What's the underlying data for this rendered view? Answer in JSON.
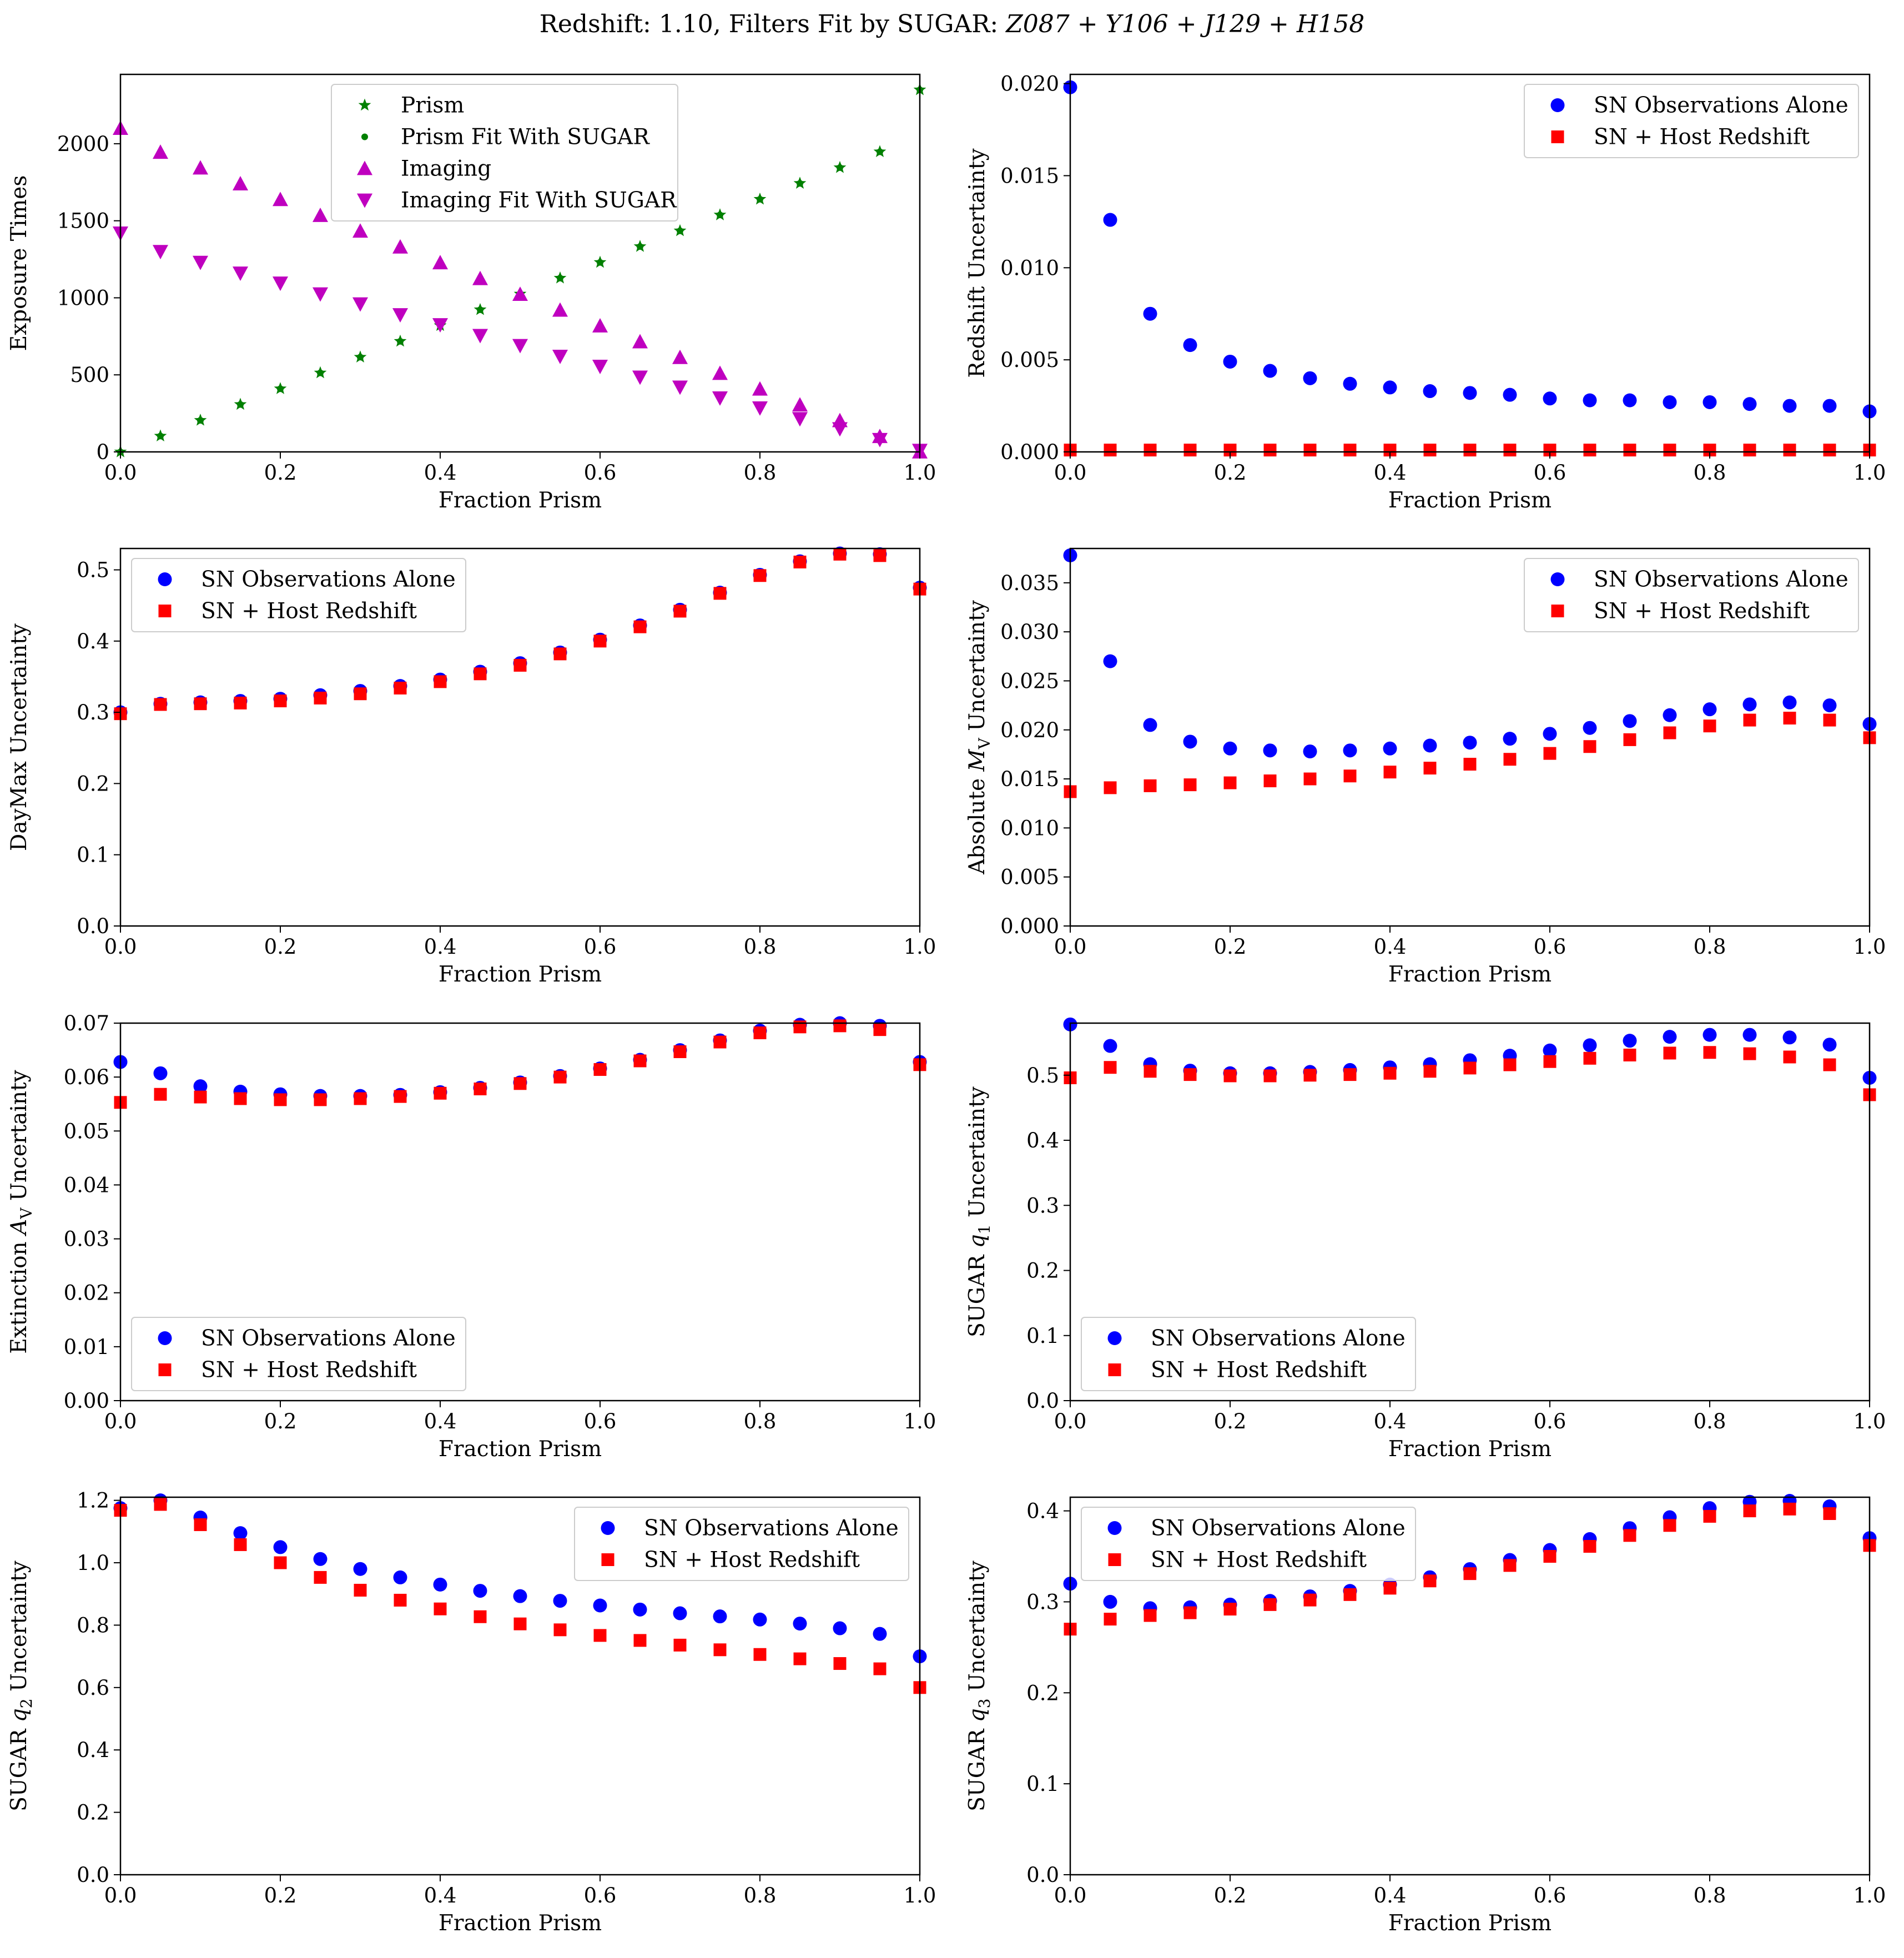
{
  "figure_title": {
    "prefix": "Redshift: 1.10, Filters Fit by SUGAR: ",
    "filters": [
      "Z087",
      "Y106",
      "J129",
      "H158"
    ],
    "joiner": " + "
  },
  "colors": {
    "green": "#008000",
    "magenta": "#bf00bf",
    "blue": "#0000ff",
    "red": "#ff0000"
  },
  "chart_data": [
    {
      "type": "scatter",
      "title": "",
      "xlabel": "Fraction Prism",
      "ylabel": "Exposure Times",
      "xlim": [
        0,
        1
      ],
      "ylim": [
        0,
        2450
      ],
      "xticks": [
        "0.0",
        "0.2",
        "0.4",
        "0.6",
        "0.8",
        "1.0"
      ],
      "yticks": [
        0,
        500,
        1000,
        1500,
        2000
      ],
      "ytick_labels": [
        "0",
        "500",
        "1000",
        "1500",
        "2000"
      ],
      "legend_loc": "top-center",
      "x": [
        0.0,
        0.05,
        0.1,
        0.15,
        0.2,
        0.25,
        0.3,
        0.35,
        0.4,
        0.45,
        0.5,
        0.55,
        0.6,
        0.65,
        0.7,
        0.75,
        0.8,
        0.85,
        0.9,
        0.95,
        1.0
      ],
      "series": [
        {
          "name": "Prism",
          "marker": "star",
          "color": "green",
          "values": [
            0,
            103,
            205,
            308,
            410,
            513,
            615,
            718,
            820,
            923,
            1025,
            1128,
            1230,
            1333,
            1435,
            1538,
            1640,
            1743,
            1845,
            1948,
            2350
          ]
        },
        {
          "name": "Prism Fit With SUGAR",
          "marker": "dot",
          "color": "green",
          "values": [
            0,
            103,
            205,
            308,
            410,
            513,
            615,
            718,
            820,
            923,
            1025,
            1128,
            1230,
            1333,
            1435,
            1538,
            1640,
            1743,
            1845,
            1948,
            2350
          ]
        },
        {
          "name": "Imaging",
          "marker": "triangle-up",
          "color": "magenta",
          "values": [
            2100,
            1945,
            1843,
            1740,
            1638,
            1535,
            1433,
            1330,
            1228,
            1125,
            1023,
            920,
            818,
            715,
            613,
            510,
            408,
            305,
            203,
            100,
            0
          ]
        },
        {
          "name": "Imaging Fit With SUGAR",
          "marker": "triangle-down",
          "color": "magenta",
          "values": [
            1420,
            1300,
            1230,
            1160,
            1095,
            1025,
            960,
            890,
            825,
            755,
            690,
            620,
            555,
            485,
            420,
            350,
            285,
            215,
            150,
            80,
            10
          ]
        }
      ]
    },
    {
      "type": "scatter",
      "title": "",
      "xlabel": "Fraction Prism",
      "ylabel": "Redshift Uncertainty",
      "xlim": [
        0,
        1
      ],
      "ylim": [
        0,
        0.0205
      ],
      "xticks": [
        "0.0",
        "0.2",
        "0.4",
        "0.6",
        "0.8",
        "1.0"
      ],
      "yticks": [
        0,
        0.005,
        0.01,
        0.015,
        0.02
      ],
      "ytick_labels": [
        "0.000",
        "0.005",
        "0.010",
        "0.015",
        "0.020"
      ],
      "legend_loc": "top-right",
      "x": [
        0.0,
        0.05,
        0.1,
        0.15,
        0.2,
        0.25,
        0.3,
        0.35,
        0.4,
        0.45,
        0.5,
        0.55,
        0.6,
        0.65,
        0.7,
        0.75,
        0.8,
        0.85,
        0.9,
        0.95,
        1.0
      ],
      "series": [
        {
          "name": "SN Observations Alone",
          "marker": "circle",
          "color": "blue",
          "values": [
            0.0198,
            0.0126,
            0.0075,
            0.0058,
            0.0049,
            0.0044,
            0.004,
            0.0037,
            0.0035,
            0.0033,
            0.0032,
            0.0031,
            0.0029,
            0.0028,
            0.0028,
            0.0027,
            0.0027,
            0.0026,
            0.0025,
            0.0025,
            0.0022
          ]
        },
        {
          "name": "SN + Host Redshift",
          "marker": "square",
          "color": "red",
          "values": [
            0.0001,
            0.0001,
            0.0001,
            0.0001,
            0.0001,
            0.0001,
            0.0001,
            0.0001,
            0.0001,
            0.0001,
            0.0001,
            0.0001,
            0.0001,
            0.0001,
            0.0001,
            0.0001,
            0.0001,
            0.0001,
            0.0001,
            0.0001,
            0.0001
          ]
        }
      ]
    },
    {
      "type": "scatter",
      "title": "",
      "xlabel": "Fraction Prism",
      "ylabel": "DayMax Uncertainty",
      "xlim": [
        0,
        1
      ],
      "ylim": [
        0,
        0.53
      ],
      "xticks": [
        "0.0",
        "0.2",
        "0.4",
        "0.6",
        "0.8",
        "1.0"
      ],
      "yticks": [
        0,
        0.1,
        0.2,
        0.3,
        0.4,
        0.5
      ],
      "ytick_labels": [
        "0.0",
        "0.1",
        "0.2",
        "0.3",
        "0.4",
        "0.5"
      ],
      "legend_loc": "top-left",
      "x": [
        0.0,
        0.05,
        0.1,
        0.15,
        0.2,
        0.25,
        0.3,
        0.35,
        0.4,
        0.45,
        0.5,
        0.55,
        0.6,
        0.65,
        0.7,
        0.75,
        0.8,
        0.85,
        0.9,
        0.95,
        1.0
      ],
      "series": [
        {
          "name": "SN Observations Alone",
          "marker": "circle",
          "color": "blue",
          "values": [
            0.3,
            0.312,
            0.314,
            0.316,
            0.319,
            0.324,
            0.33,
            0.337,
            0.346,
            0.357,
            0.369,
            0.384,
            0.402,
            0.422,
            0.444,
            0.468,
            0.493,
            0.512,
            0.523,
            0.522,
            0.475
          ]
        },
        {
          "name": "SN + Host Redshift",
          "marker": "square",
          "color": "red",
          "values": [
            0.298,
            0.311,
            0.312,
            0.313,
            0.316,
            0.32,
            0.326,
            0.334,
            0.343,
            0.354,
            0.366,
            0.382,
            0.4,
            0.42,
            0.442,
            0.467,
            0.492,
            0.511,
            0.522,
            0.52,
            0.473
          ]
        }
      ]
    },
    {
      "type": "scatter",
      "title": "",
      "xlabel": "Fraction Prism",
      "ylabel": "Absolute M_V Uncertainty",
      "ylabel_parts": [
        "Absolute ",
        "M",
        "V",
        " Uncertainty"
      ],
      "xlim": [
        0,
        1
      ],
      "ylim": [
        0,
        0.0385
      ],
      "xticks": [
        "0.0",
        "0.2",
        "0.4",
        "0.6",
        "0.8",
        "1.0"
      ],
      "yticks": [
        0,
        0.005,
        0.01,
        0.015,
        0.02,
        0.025,
        0.03,
        0.035
      ],
      "ytick_labels": [
        "0.000",
        "0.005",
        "0.010",
        "0.015",
        "0.020",
        "0.025",
        "0.030",
        "0.035"
      ],
      "legend_loc": "top-right",
      "x": [
        0.0,
        0.05,
        0.1,
        0.15,
        0.2,
        0.25,
        0.3,
        0.35,
        0.4,
        0.45,
        0.5,
        0.55,
        0.6,
        0.65,
        0.7,
        0.75,
        0.8,
        0.85,
        0.9,
        0.95,
        1.0
      ],
      "series": [
        {
          "name": "SN Observations Alone",
          "marker": "circle",
          "color": "blue",
          "values": [
            0.0378,
            0.027,
            0.0205,
            0.0188,
            0.0181,
            0.0179,
            0.0178,
            0.0179,
            0.0181,
            0.0184,
            0.0187,
            0.0191,
            0.0196,
            0.0202,
            0.0209,
            0.0215,
            0.0221,
            0.0226,
            0.0228,
            0.0225,
            0.0206
          ]
        },
        {
          "name": "SN + Host Redshift",
          "marker": "square",
          "color": "red",
          "values": [
            0.0137,
            0.0141,
            0.0143,
            0.0144,
            0.0146,
            0.0148,
            0.015,
            0.0153,
            0.0157,
            0.0161,
            0.0165,
            0.017,
            0.0176,
            0.0183,
            0.019,
            0.0197,
            0.0204,
            0.021,
            0.0212,
            0.021,
            0.0192
          ]
        }
      ]
    },
    {
      "type": "scatter",
      "title": "",
      "xlabel": "Fraction Prism",
      "ylabel": "Extinction A_V Uncertainty",
      "ylabel_parts": [
        "Extinction ",
        "A",
        "V",
        " Uncertainty"
      ],
      "xlim": [
        0,
        1
      ],
      "ylim": [
        0,
        0.07
      ],
      "xticks": [
        "0.0",
        "0.2",
        "0.4",
        "0.6",
        "0.8",
        "1.0"
      ],
      "yticks": [
        0,
        0.01,
        0.02,
        0.03,
        0.04,
        0.05,
        0.06,
        0.07
      ],
      "ytick_labels": [
        "0.00",
        "0.01",
        "0.02",
        "0.03",
        "0.04",
        "0.05",
        "0.06",
        "0.07"
      ],
      "legend_loc": "bottom-left",
      "x": [
        0.0,
        0.05,
        0.1,
        0.15,
        0.2,
        0.25,
        0.3,
        0.35,
        0.4,
        0.45,
        0.5,
        0.55,
        0.6,
        0.65,
        0.7,
        0.75,
        0.8,
        0.85,
        0.9,
        0.95,
        1.0
      ],
      "series": [
        {
          "name": "SN Observations Alone",
          "marker": "circle",
          "color": "blue",
          "values": [
            0.0628,
            0.0607,
            0.0583,
            0.0573,
            0.0568,
            0.0565,
            0.0565,
            0.0567,
            0.0572,
            0.058,
            0.059,
            0.0602,
            0.0616,
            0.0632,
            0.065,
            0.0668,
            0.0686,
            0.0697,
            0.07,
            0.0695,
            0.0628
          ]
        },
        {
          "name": "SN + Host Redshift",
          "marker": "square",
          "color": "red",
          "values": [
            0.0553,
            0.0568,
            0.0563,
            0.056,
            0.0558,
            0.0558,
            0.056,
            0.0564,
            0.057,
            0.0578,
            0.0588,
            0.06,
            0.0614,
            0.063,
            0.0647,
            0.0665,
            0.0682,
            0.0693,
            0.0695,
            0.0688,
            0.0623
          ]
        }
      ]
    },
    {
      "type": "scatter",
      "title": "",
      "xlabel": "Fraction Prism",
      "ylabel": "SUGAR q_1 Uncertainty",
      "ylabel_parts": [
        "SUGAR ",
        "q",
        "1",
        " Uncertainty"
      ],
      "xlim": [
        0,
        1
      ],
      "ylim": [
        0,
        0.58
      ],
      "xticks": [
        "0.0",
        "0.2",
        "0.4",
        "0.6",
        "0.8",
        "1.0"
      ],
      "yticks": [
        0,
        0.1,
        0.2,
        0.3,
        0.4,
        0.5
      ],
      "ytick_labels": [
        "0.0",
        "0.1",
        "0.2",
        "0.3",
        "0.4",
        "0.5"
      ],
      "legend_loc": "bottom-left",
      "x": [
        0.0,
        0.05,
        0.1,
        0.15,
        0.2,
        0.25,
        0.3,
        0.35,
        0.4,
        0.45,
        0.5,
        0.55,
        0.6,
        0.65,
        0.7,
        0.75,
        0.8,
        0.85,
        0.9,
        0.95,
        1.0
      ],
      "series": [
        {
          "name": "SN Observations Alone",
          "marker": "circle",
          "color": "blue",
          "values": [
            0.578,
            0.545,
            0.517,
            0.507,
            0.503,
            0.503,
            0.505,
            0.508,
            0.512,
            0.517,
            0.523,
            0.53,
            0.538,
            0.546,
            0.553,
            0.559,
            0.562,
            0.562,
            0.558,
            0.547,
            0.496
          ]
        },
        {
          "name": "SN + Host Redshift",
          "marker": "square",
          "color": "red",
          "values": [
            0.496,
            0.512,
            0.506,
            0.501,
            0.499,
            0.499,
            0.5,
            0.501,
            0.503,
            0.506,
            0.511,
            0.516,
            0.521,
            0.526,
            0.531,
            0.534,
            0.535,
            0.533,
            0.528,
            0.516,
            0.47
          ]
        }
      ]
    },
    {
      "type": "scatter",
      "title": "",
      "xlabel": "Fraction Prism",
      "ylabel": "SUGAR q_2 Uncertainty",
      "ylabel_parts": [
        "SUGAR ",
        "q",
        "2",
        " Uncertainty"
      ],
      "xlim": [
        0,
        1
      ],
      "ylim": [
        0,
        1.21
      ],
      "xticks": [
        "0.0",
        "0.2",
        "0.4",
        "0.6",
        "0.8",
        "1.0"
      ],
      "yticks": [
        0,
        0.2,
        0.4,
        0.6,
        0.8,
        1.0,
        1.2
      ],
      "ytick_labels": [
        "0.0",
        "0.2",
        "0.4",
        "0.6",
        "0.8",
        "1.0",
        "1.2"
      ],
      "legend_loc": "top-right",
      "x": [
        0.0,
        0.05,
        0.1,
        0.15,
        0.2,
        0.25,
        0.3,
        0.35,
        0.4,
        0.45,
        0.5,
        0.55,
        0.6,
        0.65,
        0.7,
        0.75,
        0.8,
        0.85,
        0.9,
        0.95,
        1.0
      ],
      "series": [
        {
          "name": "SN Observations Alone",
          "marker": "circle",
          "color": "blue",
          "values": [
            1.175,
            1.2,
            1.145,
            1.095,
            1.05,
            1.012,
            0.98,
            0.953,
            0.93,
            0.91,
            0.893,
            0.878,
            0.863,
            0.85,
            0.838,
            0.828,
            0.818,
            0.805,
            0.79,
            0.772,
            0.7
          ]
        },
        {
          "name": "SN + Host Redshift",
          "marker": "square",
          "color": "red",
          "values": [
            1.168,
            1.187,
            1.122,
            1.058,
            1.0,
            0.953,
            0.912,
            0.88,
            0.852,
            0.827,
            0.804,
            0.785,
            0.767,
            0.751,
            0.736,
            0.721,
            0.706,
            0.692,
            0.677,
            0.66,
            0.6
          ]
        }
      ]
    },
    {
      "type": "scatter",
      "title": "",
      "xlabel": "Fraction Prism",
      "ylabel": "SUGAR q_3 Uncertainty",
      "ylabel_parts": [
        "SUGAR ",
        "q",
        "3",
        " Uncertainty"
      ],
      "xlim": [
        0,
        1
      ],
      "ylim": [
        0,
        0.415
      ],
      "xticks": [
        "0.0",
        "0.2",
        "0.4",
        "0.6",
        "0.8",
        "1.0"
      ],
      "yticks": [
        0,
        0.1,
        0.2,
        0.3,
        0.4
      ],
      "ytick_labels": [
        "0.0",
        "0.1",
        "0.2",
        "0.3",
        "0.4"
      ],
      "legend_loc": "top-left",
      "x": [
        0.0,
        0.05,
        0.1,
        0.15,
        0.2,
        0.25,
        0.3,
        0.35,
        0.4,
        0.45,
        0.5,
        0.55,
        0.6,
        0.65,
        0.7,
        0.75,
        0.8,
        0.85,
        0.9,
        0.95,
        1.0
      ],
      "series": [
        {
          "name": "SN Observations Alone",
          "marker": "circle",
          "color": "blue",
          "values": [
            0.32,
            0.3,
            0.293,
            0.294,
            0.297,
            0.301,
            0.306,
            0.312,
            0.319,
            0.327,
            0.336,
            0.346,
            0.357,
            0.369,
            0.381,
            0.393,
            0.403,
            0.41,
            0.411,
            0.405,
            0.37
          ]
        },
        {
          "name": "SN + Host Redshift",
          "marker": "square",
          "color": "red",
          "values": [
            0.27,
            0.281,
            0.285,
            0.288,
            0.292,
            0.297,
            0.302,
            0.308,
            0.315,
            0.323,
            0.331,
            0.34,
            0.35,
            0.361,
            0.373,
            0.384,
            0.394,
            0.4,
            0.402,
            0.397,
            0.362
          ]
        }
      ]
    }
  ]
}
